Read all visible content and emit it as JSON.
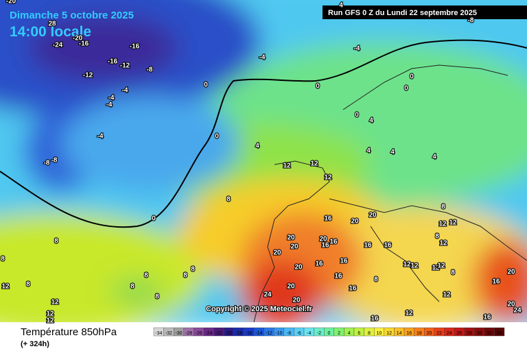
{
  "header": {
    "date": "Dimanche 5 octobre 2025",
    "time": "14:00 locale",
    "run": "Run GFS 0 Z du Lundi 22 septembre 2025"
  },
  "copyright": "Copyright © 2025 Meteociel.fr",
  "footer": {
    "title": "Température 850hPa",
    "lead": "(+ 324h)"
  },
  "scale": [
    -34,
    -32,
    -30,
    -28,
    -26,
    -24,
    -22,
    -20,
    -18,
    -16,
    -14,
    -12,
    -10,
    -8,
    -6,
    -4,
    -2,
    0,
    2,
    4,
    6,
    8,
    10,
    12,
    14,
    16,
    18,
    20,
    22,
    24,
    26,
    28,
    30,
    32,
    34
  ],
  "contour_labels": [
    "-20",
    "28",
    "-24",
    "-20",
    "-16",
    "-16",
    "-16",
    "-12",
    "-8",
    "-12",
    "-4",
    "-4",
    "-8",
    "4",
    "-4",
    "-4",
    "-4",
    "-4",
    "-8",
    "-8",
    "0",
    "0",
    "0",
    "0",
    "0",
    "0",
    "4",
    "4",
    "4",
    "4",
    "4",
    "0",
    "8",
    "12",
    "12",
    "12",
    "16",
    "20",
    "20",
    "8",
    "12",
    "12",
    "8",
    "12",
    "20",
    "20",
    "20",
    "20",
    "16",
    "16",
    "16",
    "16",
    "16",
    "16",
    "20",
    "12",
    "12",
    "12",
    "12",
    "8",
    "16",
    "20",
    "8",
    "16",
    "24",
    "20",
    "12",
    "16",
    "20",
    "20",
    "24",
    "16",
    "16",
    "12",
    "8",
    "8",
    "8",
    "8",
    "8",
    "8",
    "8",
    "12",
    "12",
    "12",
    "12",
    "8"
  ]
}
